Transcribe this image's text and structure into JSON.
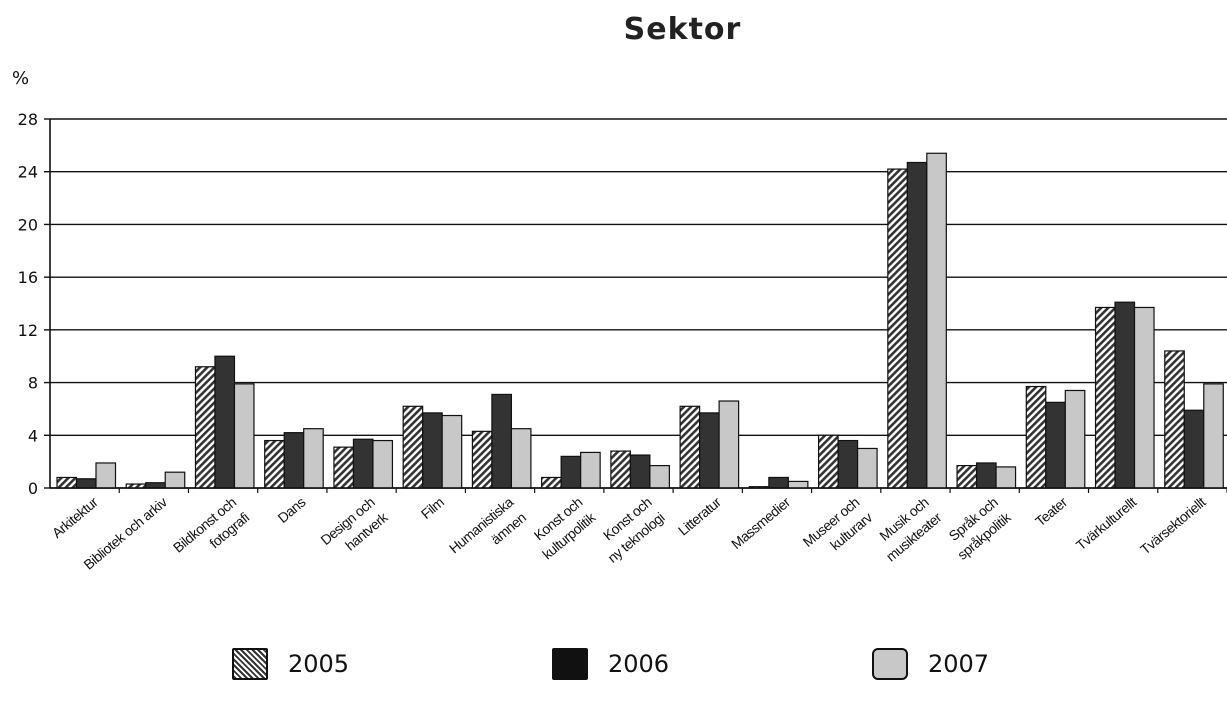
{
  "chart_data": {
    "type": "bar",
    "title": "Sektor",
    "ylabel": "%",
    "xlabel": "",
    "ylim": [
      0,
      28
    ],
    "yticks": [
      0,
      4,
      8,
      12,
      16,
      20,
      24,
      28
    ],
    "grid": true,
    "legend_position": "bottom",
    "categories": [
      "Arkitektur",
      "Bibliotek och arkiv",
      "Bildkonst och fotografi",
      "Dans",
      "Design och hantverk",
      "Film",
      "Humanistiska ämnen",
      "Konst och kulturpolitik",
      "Konst och ny teknologi",
      "Litteratur",
      "Massmedier",
      "Museer och kulturarv",
      "Musik och musikteater",
      "Språk och språkpolitik",
      "Teater",
      "Tvärkulturellt",
      "Tvärsektoriellt"
    ],
    "series": [
      {
        "name": "2005",
        "style": "hatched",
        "color": "#5a5a5a",
        "values": [
          0.8,
          0.3,
          9.2,
          3.6,
          3.1,
          6.2,
          4.3,
          0.8,
          2.8,
          6.2,
          0.1,
          4.0,
          24.2,
          1.7,
          7.7,
          13.7,
          10.4
        ]
      },
      {
        "name": "2006",
        "style": "solid",
        "color": "#333333",
        "values": [
          0.7,
          0.4,
          10.0,
          4.2,
          3.7,
          5.7,
          7.1,
          2.4,
          2.5,
          5.7,
          0.8,
          3.6,
          24.7,
          1.9,
          6.5,
          14.1,
          5.9
        ]
      },
      {
        "name": "2007",
        "style": "solid",
        "color": "#c8c8c8",
        "values": [
          1.9,
          1.2,
          7.9,
          4.5,
          3.6,
          5.5,
          4.5,
          2.7,
          1.7,
          6.6,
          0.5,
          3.0,
          25.4,
          1.6,
          7.4,
          13.7,
          7.9
        ]
      }
    ]
  }
}
